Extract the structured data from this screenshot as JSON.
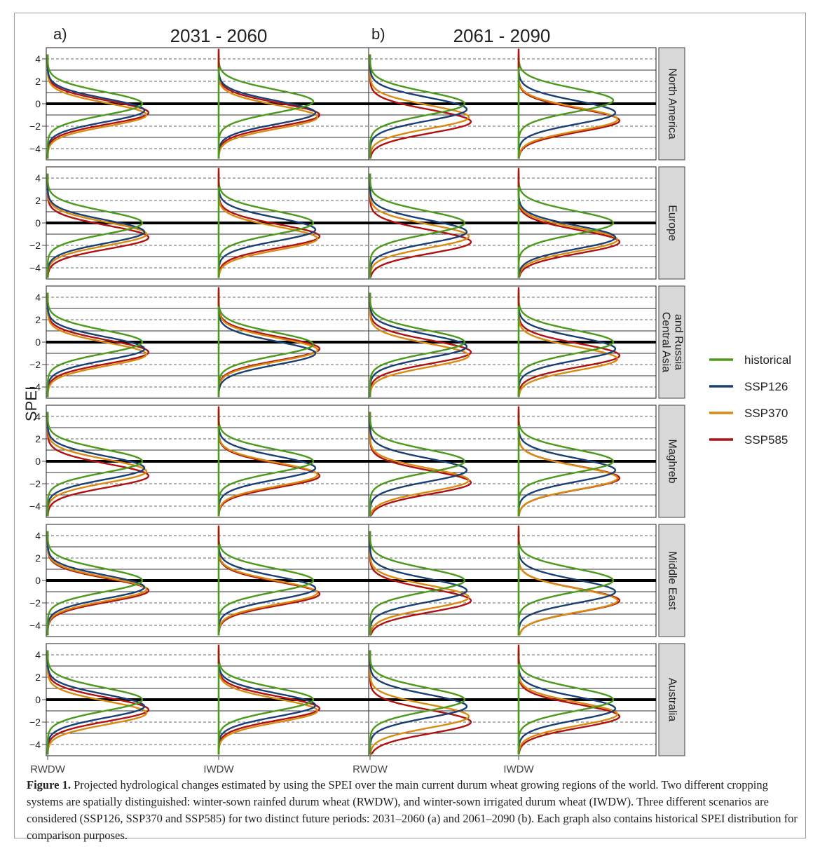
{
  "caption": {
    "label": "Figure 1.",
    "text": "Projected hydrological changes estimated by using the SPEI over the main current durum wheat growing regions of the world. Two different cropping systems are spatially distinguished: winter-sown rainfed durum wheat (RWDW), and winter-sown irrigated durum wheat (IWDW). Three different scenarios are considered (SSP126, SSP370 and SSP585) for two distinct future periods: 2031–2060 (a) and 2061–2090 (b). Each graph also contains historical SPEI distribution for comparison purposes."
  },
  "chart_data": {
    "type": "violin-density",
    "ylabel": "SPEI",
    "ylim": [
      -5,
      5
    ],
    "yticks": [
      -4,
      -2,
      0,
      2,
      4
    ],
    "grid": true,
    "legend_position": "right",
    "panels": [
      {
        "tag": "a)",
        "title": "2031 - 2060"
      },
      {
        "tag": "b)",
        "title": "2061 - 2090"
      }
    ],
    "x_categories": [
      "RWDW",
      "IWDW",
      "RWDW",
      "IWDW"
    ],
    "regions": [
      "North America",
      "Europe",
      "Central Asia and Russia",
      "Maghreb",
      "Middle East",
      "Australia"
    ],
    "region_labels": [
      [
        "North America"
      ],
      [
        "Europe"
      ],
      [
        "Central Asia",
        "and Russia"
      ],
      [
        "Maghreb"
      ],
      [
        "Middle East"
      ],
      [
        "Australia"
      ]
    ],
    "series": [
      {
        "name": "historical",
        "color": "#4c9a1c"
      },
      {
        "name": "SSP126",
        "color": "#1a3f73"
      },
      {
        "name": "SSP370",
        "color": "#d98a10"
      },
      {
        "name": "SSP585",
        "color": "#b11111"
      }
    ],
    "distribution_modes": {
      "North America": {
        "2031 - 2060": {
          "RWDW": [
            0.0,
            -0.6,
            -1.0,
            -0.8
          ],
          "IWDW": [
            0.2,
            -0.8,
            -1.2,
            -1.0
          ]
        },
        "2061 - 2090": {
          "RWDW": [
            0.0,
            -0.5,
            -1.2,
            -1.6
          ],
          "IWDW": [
            0.3,
            -0.8,
            -1.4,
            -1.5
          ]
        }
      },
      "Europe": {
        "2031 - 2060": {
          "RWDW": [
            0.0,
            -0.8,
            -1.0,
            -1.3
          ],
          "IWDW": [
            0.0,
            -0.6,
            -1.4,
            -1.2
          ]
        },
        "2061 - 2090": {
          "RWDW": [
            0.0,
            -0.8,
            -1.2,
            -1.7
          ],
          "IWDW": [
            0.0,
            -1.3,
            -1.5,
            -1.7
          ]
        }
      },
      "Central Asia and Russia": {
        "2031 - 2060": {
          "RWDW": [
            0.0,
            -0.6,
            -1.1,
            -0.9
          ],
          "IWDW": [
            -0.2,
            -1.0,
            -0.7,
            -0.6
          ]
        },
        "2061 - 2090": {
          "RWDW": [
            0.0,
            -0.4,
            -1.2,
            -0.9
          ],
          "IWDW": [
            0.0,
            -0.6,
            -1.5,
            -1.2
          ]
        }
      },
      "Maghreb": {
        "2031 - 2060": {
          "RWDW": [
            0.0,
            -0.6,
            -0.9,
            -1.3
          ],
          "IWDW": [
            0.0,
            -0.6,
            -1.2,
            -1.3
          ]
        },
        "2061 - 2090": {
          "RWDW": [
            0.0,
            -0.8,
            -1.7,
            -1.9
          ],
          "IWDW": [
            0.0,
            -0.8,
            -1.5,
            -1.5
          ]
        }
      },
      "Middle East": {
        "2031 - 2060": {
          "RWDW": [
            0.0,
            -0.6,
            -0.8,
            -0.9
          ],
          "IWDW": [
            0.0,
            -0.7,
            -1.1,
            -1.2
          ]
        },
        "2061 - 2090": {
          "RWDW": [
            0.0,
            -0.9,
            -1.5,
            -1.8
          ],
          "IWDW": [
            0.0,
            -1.0,
            -1.8,
            -1.8
          ]
        }
      },
      "Australia": {
        "2031 - 2060": {
          "RWDW": [
            0.0,
            -0.6,
            -1.2,
            -0.9
          ],
          "IWDW": [
            0.0,
            -0.5,
            -1.0,
            -0.8
          ]
        },
        "2061 - 2090": {
          "RWDW": [
            0.0,
            -0.6,
            -1.5,
            -2.0
          ],
          "IWDW": [
            0.0,
            -0.8,
            -1.3,
            -1.5
          ]
        }
      }
    },
    "note": ""
  }
}
